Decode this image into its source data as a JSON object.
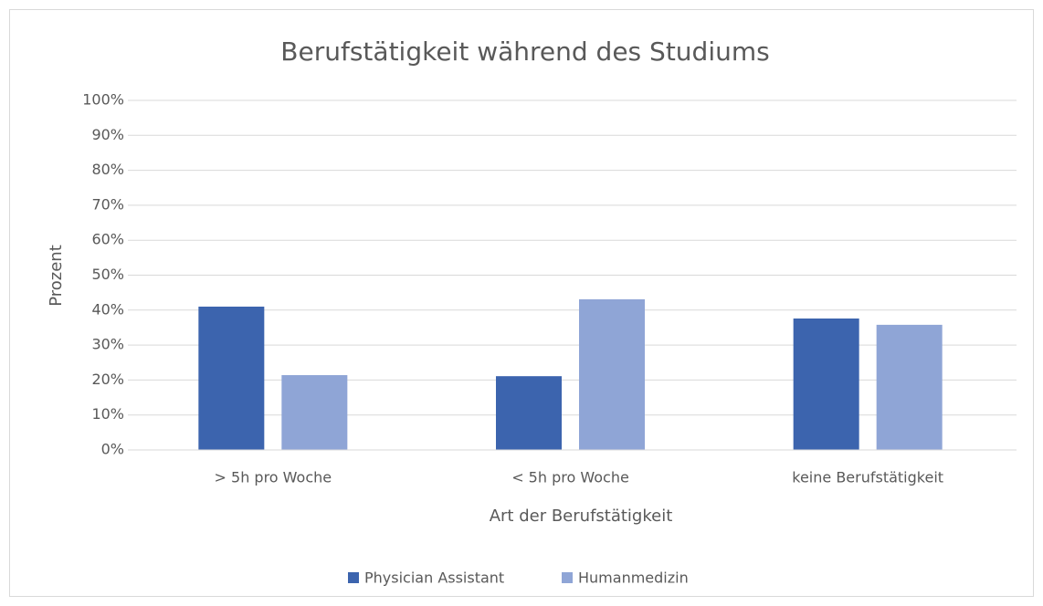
{
  "chart_data": {
    "type": "bar",
    "title": "Berufstätigkeit während des Studiums",
    "x_label": "Art der Berufstätigkeit",
    "y_label": "Prozent",
    "categories": [
      "> 5h pro Woche",
      "< 5h pro Woche",
      "keine Berufstätigkeit"
    ],
    "series": [
      {
        "name": "Physician Assistant",
        "color": "#3c64ae",
        "values": [
          41.0,
          21.1,
          37.6
        ]
      },
      {
        "name": "Humanmedizin",
        "color": "#8fa5d6",
        "values": [
          21.4,
          43.1,
          35.8
        ]
      }
    ],
    "ylim": [
      0,
      100
    ],
    "yticks": [
      {
        "value": 0,
        "label": "0%"
      },
      {
        "value": 10,
        "label": "10%"
      },
      {
        "value": 20,
        "label": "20%"
      },
      {
        "value": 30,
        "label": "30%"
      },
      {
        "value": 40,
        "label": "40%"
      },
      {
        "value": 50,
        "label": "50%"
      },
      {
        "value": 60,
        "label": "60%"
      },
      {
        "value": 70,
        "label": "70%"
      },
      {
        "value": 80,
        "label": "80%"
      },
      {
        "value": 90,
        "label": "90%"
      },
      {
        "value": 100,
        "label": "100%"
      }
    ],
    "grid": true,
    "legend": "bottom"
  }
}
